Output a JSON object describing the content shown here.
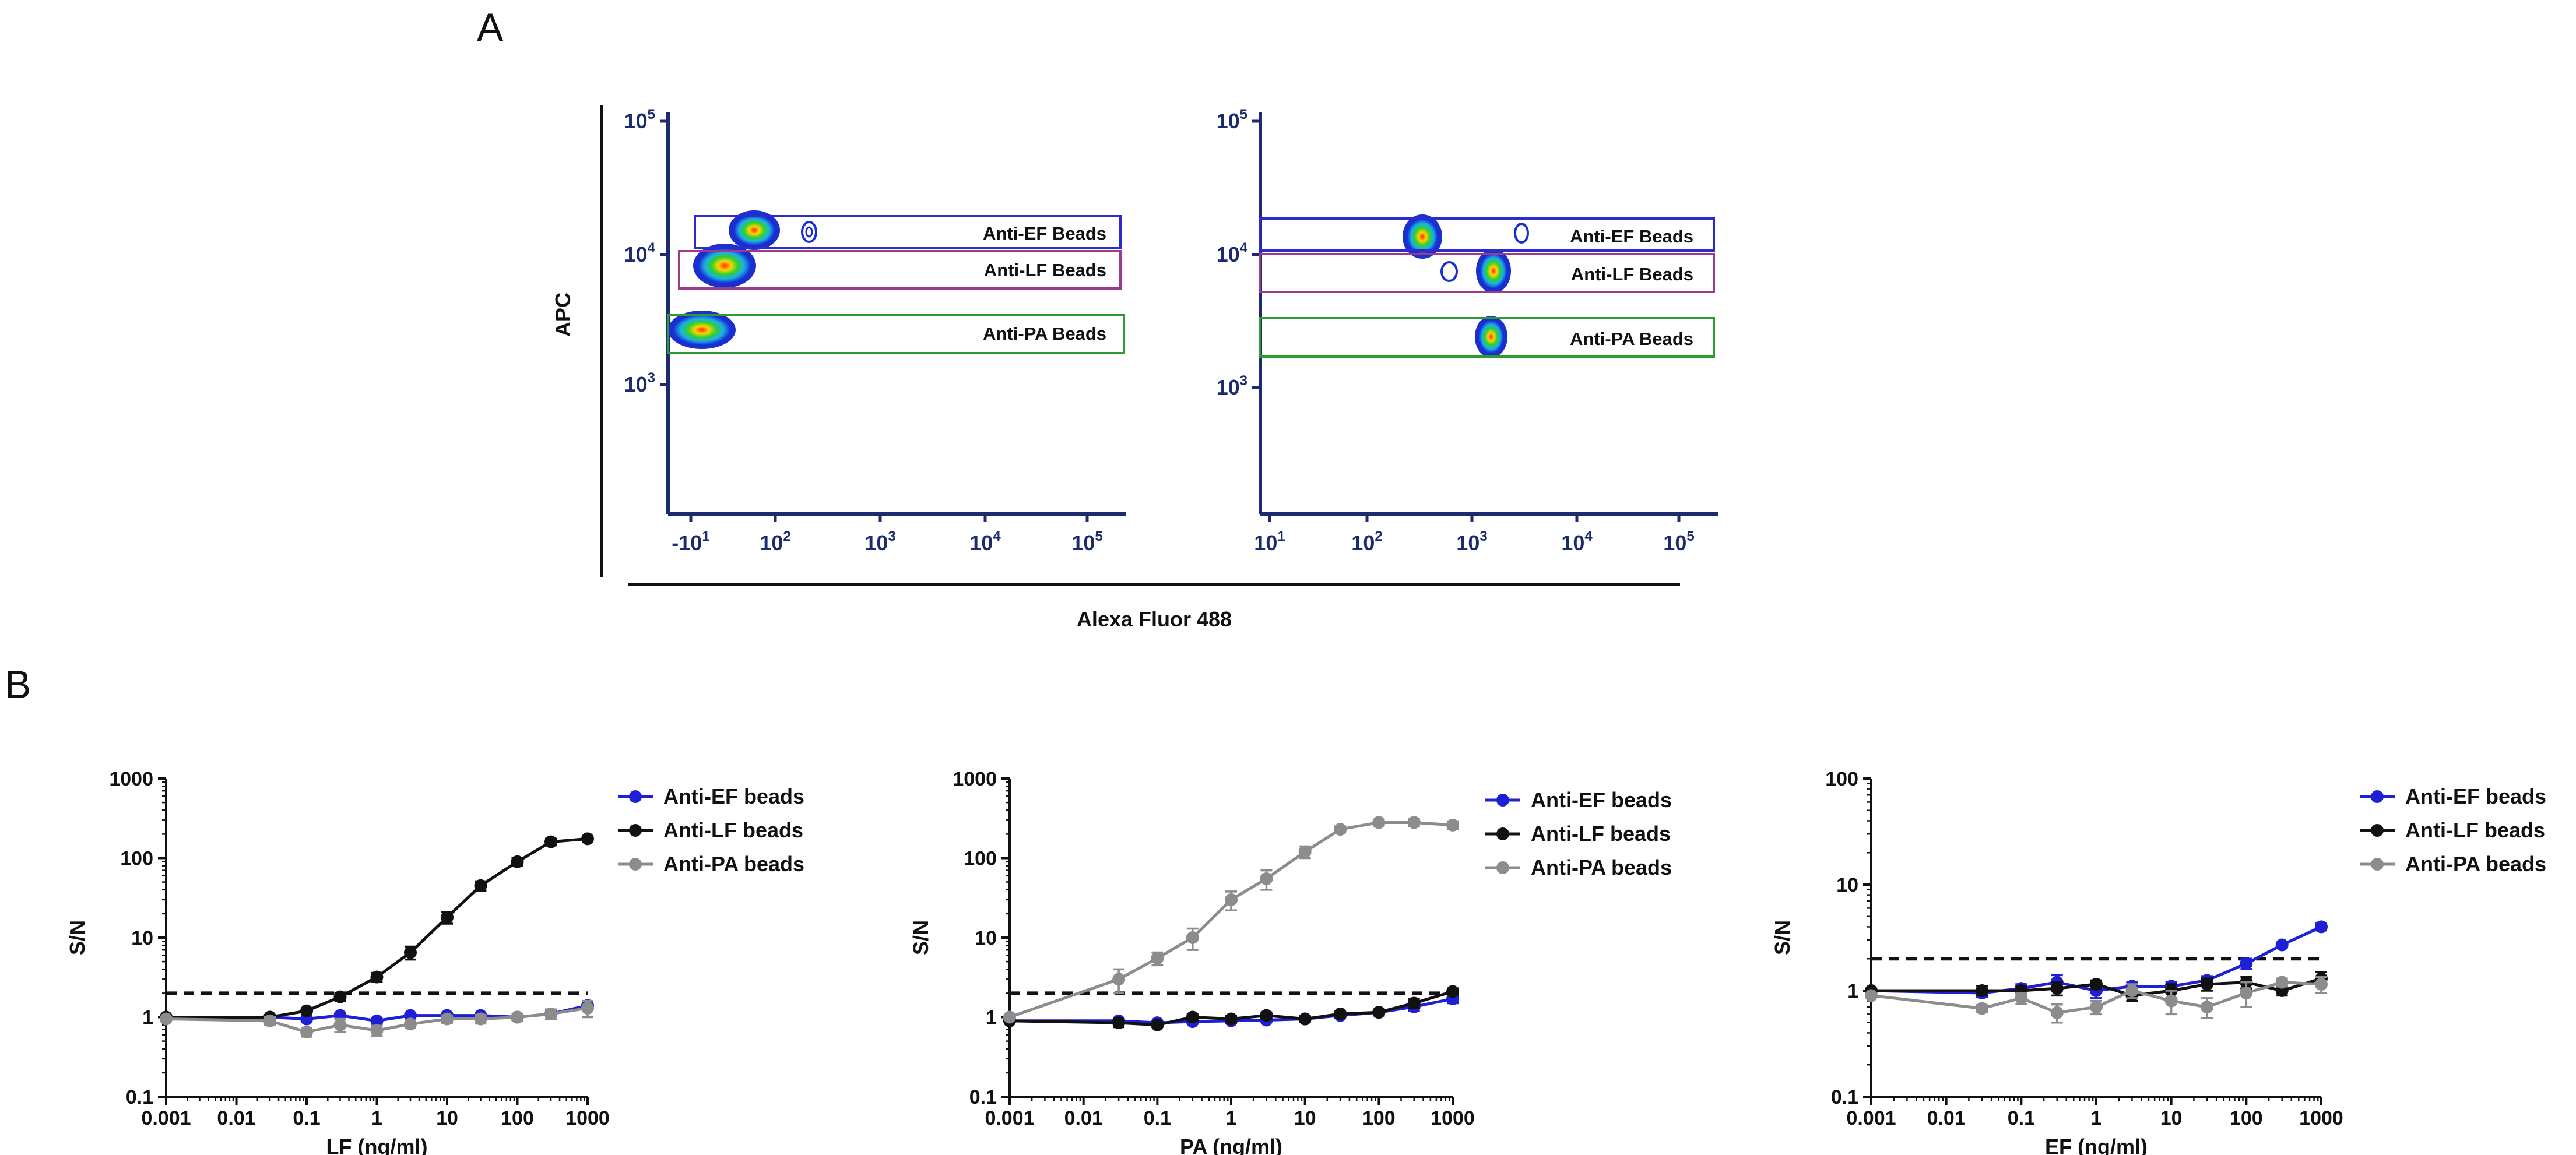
{
  "panel_labels": {
    "a": "A",
    "b": "B"
  },
  "colors": {
    "ef": "#1f1fd6",
    "lf": "#111111",
    "pa": "#8c8c8c",
    "gate_ef": "#2b2bd0",
    "gate_lf": "#9b3b8c",
    "gate_pa": "#2f9a2f",
    "axis_tick": "#1c2a6e"
  },
  "chart_data": [
    {
      "type": "flow-cytometry-contour",
      "panel": "A-left",
      "xlabel": "Alexa Fluor 488",
      "ylabel": "APC",
      "x_ticks": [
        {
          "pre": "-10",
          "sup": "1"
        },
        {
          "pre": "10",
          "sup": "2"
        },
        {
          "pre": "10",
          "sup": "3"
        },
        {
          "pre": "10",
          "sup": "4"
        },
        {
          "pre": "10",
          "sup": "5"
        }
      ],
      "y_ticks": [
        {
          "pre": "10",
          "sup": "3"
        },
        {
          "pre": "10",
          "sup": "4"
        },
        {
          "pre": "10",
          "sup": "5"
        }
      ],
      "gates": [
        {
          "label": "Anti-EF Beads",
          "color_key": "gate_ef"
        },
        {
          "label": "Anti-LF Beads",
          "color_key": "gate_lf"
        },
        {
          "label": "Anti-PA Beads",
          "color_key": "gate_pa"
        }
      ]
    },
    {
      "type": "flow-cytometry-contour",
      "panel": "A-right",
      "xlabel": "Alexa Fluor 488",
      "ylabel": "APC",
      "x_ticks": [
        {
          "pre": "10",
          "sup": "1"
        },
        {
          "pre": "10",
          "sup": "2"
        },
        {
          "pre": "10",
          "sup": "3"
        },
        {
          "pre": "10",
          "sup": "4"
        },
        {
          "pre": "10",
          "sup": "5"
        }
      ],
      "y_ticks": [
        {
          "pre": "10",
          "sup": "3"
        },
        {
          "pre": "10",
          "sup": "4"
        },
        {
          "pre": "10",
          "sup": "5"
        }
      ],
      "gates": [
        {
          "label": "Anti-EF Beads",
          "color_key": "gate_ef"
        },
        {
          "label": "Anti-LF Beads",
          "color_key": "gate_lf"
        },
        {
          "label": "Anti-PA Beads",
          "color_key": "gate_pa"
        }
      ]
    },
    {
      "type": "line",
      "panel": "B-1",
      "title": "",
      "xlabel": "LF (ng/ml)",
      "ylabel": "S/N",
      "xscale": "log",
      "yscale": "log",
      "xlim": [
        0.001,
        1000
      ],
      "ylim": [
        0.1,
        1000
      ],
      "x_tick_labels": [
        "0.001",
        "0.01",
        "0.1",
        "1",
        "10",
        "100",
        "1000"
      ],
      "y_tick_labels": [
        "0.1",
        "1",
        "10",
        "100",
        "1000"
      ],
      "threshold": 2,
      "legend": "right",
      "x": [
        0.001,
        0.03,
        0.1,
        0.3,
        1,
        3,
        10,
        30,
        100,
        300,
        1000
      ],
      "series": [
        {
          "name": "Anti-EF beads",
          "color_key": "ef",
          "values": [
            1.0,
            1.0,
            0.95,
            1.05,
            0.9,
            1.05,
            1.05,
            1.05,
            1.0,
            1.1,
            1.4
          ],
          "err": [
            0,
            0.05,
            0.05,
            0.08,
            0.08,
            0.06,
            0.06,
            0.06,
            0.05,
            0.08,
            0.15
          ]
        },
        {
          "name": "Anti-LF beads",
          "color_key": "lf",
          "values": [
            1.0,
            1.0,
            1.2,
            1.8,
            3.2,
            6.5,
            18,
            45,
            90,
            160,
            175
          ],
          "err": [
            0,
            0.06,
            0.1,
            0.2,
            0.4,
            1.2,
            3,
            6,
            10,
            15,
            15
          ]
        },
        {
          "name": "Anti-PA beads",
          "color_key": "pa",
          "values": [
            0.95,
            0.9,
            0.65,
            0.8,
            0.68,
            0.82,
            0.95,
            0.95,
            1.0,
            1.1,
            1.3
          ],
          "err": [
            0,
            0.1,
            0.08,
            0.15,
            0.1,
            0.08,
            0.1,
            0.12,
            0.1,
            0.15,
            0.3
          ]
        }
      ]
    },
    {
      "type": "line",
      "panel": "B-2",
      "title": "",
      "xlabel": "PA (ng/ml)",
      "ylabel": "S/N",
      "xscale": "log",
      "yscale": "log",
      "xlim": [
        0.001,
        1000
      ],
      "ylim": [
        0.1,
        1000
      ],
      "x_tick_labels": [
        "0.001",
        "0.01",
        "0.1",
        "1",
        "10",
        "100",
        "1000"
      ],
      "y_tick_labels": [
        "0.1",
        "1",
        "10",
        "100",
        "1000"
      ],
      "threshold": 2,
      "legend": "right",
      "x": [
        0.001,
        0.03,
        0.1,
        0.3,
        1,
        3,
        10,
        30,
        100,
        300,
        1000
      ],
      "series": [
        {
          "name": "Anti-EF beads",
          "color_key": "ef",
          "values": [
            0.9,
            0.9,
            0.85,
            0.88,
            0.9,
            0.92,
            0.95,
            1.05,
            1.15,
            1.35,
            1.7
          ],
          "err": [
            0,
            0.05,
            0.05,
            0.05,
            0.05,
            0.05,
            0.05,
            0.08,
            0.1,
            0.15,
            0.2
          ]
        },
        {
          "name": "Anti-LF beads",
          "color_key": "lf",
          "values": [
            0.9,
            0.85,
            0.8,
            1.0,
            0.95,
            1.05,
            0.95,
            1.1,
            1.15,
            1.5,
            2.1
          ],
          "err": [
            0,
            0.1,
            0.05,
            0.1,
            0.08,
            0.1,
            0.08,
            0.1,
            0.1,
            0.2,
            0.2
          ]
        },
        {
          "name": "Anti-PA beads",
          "color_key": "pa",
          "values": [
            1.0,
            3.0,
            5.5,
            10,
            30,
            55,
            120,
            230,
            280,
            280,
            260
          ],
          "err": [
            0,
            1.0,
            1.0,
            3,
            8,
            15,
            20,
            20,
            25,
            30,
            30
          ]
        }
      ]
    },
    {
      "type": "line",
      "panel": "B-3",
      "title": "",
      "xlabel": "EF (ng/ml)",
      "ylabel": "S/N",
      "xscale": "log",
      "yscale": "log",
      "xlim": [
        0.001,
        1000
      ],
      "ylim": [
        0.1,
        100
      ],
      "x_tick_labels": [
        "0.001",
        "0.01",
        "0.1",
        "1",
        "10",
        "100",
        "1000"
      ],
      "y_tick_labels": [
        "0.1",
        "1",
        "10",
        "100"
      ],
      "threshold": 2,
      "legend": "right",
      "x": [
        0.001,
        0.03,
        0.1,
        0.3,
        1,
        3,
        10,
        30,
        100,
        300,
        1000
      ],
      "series": [
        {
          "name": "Anti-EF beads",
          "color_key": "ef",
          "values": [
            1.0,
            0.95,
            1.05,
            1.2,
            1.0,
            1.1,
            1.1,
            1.25,
            1.8,
            2.7,
            4.0
          ],
          "err": [
            0,
            0.08,
            0.1,
            0.2,
            0.15,
            0.1,
            0.1,
            0.12,
            0.2,
            0.15,
            0.3
          ]
        },
        {
          "name": "Anti-LF beads",
          "color_key": "lf",
          "values": [
            1.0,
            1.0,
            1.0,
            1.05,
            1.15,
            0.9,
            1.0,
            1.15,
            1.2,
            1.0,
            1.3
          ],
          "err": [
            0,
            0.1,
            0.1,
            0.15,
            0.1,
            0.1,
            0.15,
            0.15,
            0.15,
            0.1,
            0.2
          ]
        },
        {
          "name": "Anti-PA beads",
          "color_key": "pa",
          "values": [
            0.9,
            0.68,
            0.85,
            0.62,
            0.7,
            1.0,
            0.8,
            0.7,
            0.95,
            1.2,
            1.15
          ],
          "err": [
            0,
            0.05,
            0.1,
            0.12,
            0.1,
            0.15,
            0.2,
            0.15,
            0.25,
            0.1,
            0.2
          ]
        }
      ]
    }
  ]
}
